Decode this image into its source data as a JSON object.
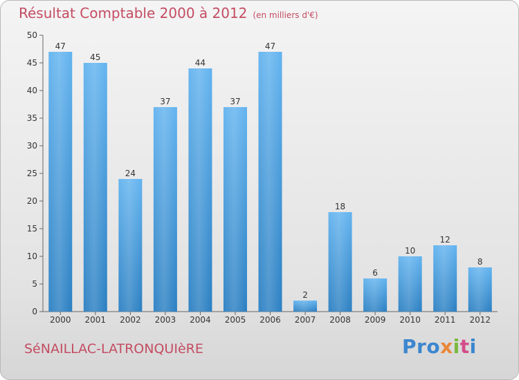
{
  "header": {
    "title": "Résultat Comptable 2000 à 2012",
    "subtitle": "(en milliers d'€)"
  },
  "footer": {
    "place": "SéNAILLAC-LATRONQUIèRE",
    "logo": [
      "Pro",
      "x",
      "i",
      "t",
      "i"
    ]
  },
  "colors": {
    "bar_light": "#62b3ef",
    "bar_dark": "#2a7fc2",
    "title": "#c44c62"
  },
  "chart_data": {
    "type": "bar",
    "title": "Résultat Comptable 2000 à 2012",
    "subtitle": "(en milliers d'€)",
    "xlabel": "",
    "ylabel": "",
    "categories": [
      "2000",
      "2001",
      "2002",
      "2003",
      "2004",
      "2005",
      "2006",
      "2007",
      "2008",
      "2009",
      "2010",
      "2011",
      "2012"
    ],
    "values": [
      47,
      45,
      24,
      37,
      44,
      37,
      47,
      2,
      18,
      6,
      10,
      12,
      8
    ],
    "ylim": [
      0,
      50
    ],
    "yticks": [
      0,
      5,
      10,
      15,
      20,
      25,
      30,
      35,
      40,
      45,
      50
    ],
    "grid": false,
    "legend": "none"
  }
}
